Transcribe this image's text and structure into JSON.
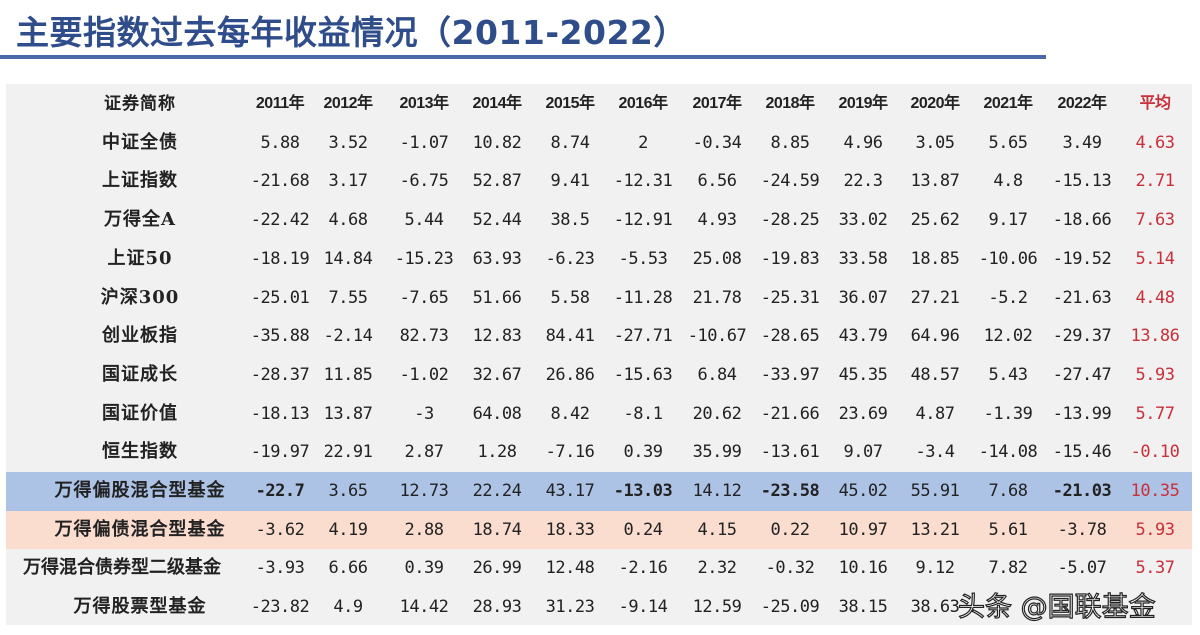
{
  "title": "主要指数过去每年收益情况（2011-2022）",
  "colors": {
    "title": "#2f4d8a",
    "average_text": "#c8303a",
    "highlight_equity_row": "#adc3e6",
    "highlight_bond_row": "#fbddd0",
    "panel": "#f1f1f1"
  },
  "table": {
    "headers": [
      "证券简称",
      "2011年",
      "2012年",
      "2013年",
      "2014年",
      "2015年",
      "2016年",
      "2017年",
      "2018年",
      "2019年",
      "2020年",
      "2021年",
      "2022年",
      "平均"
    ],
    "rows": [
      {
        "name": "中证全债",
        "values": [
          "5.88",
          "3.52",
          "-1.07",
          "10.82",
          "8.74",
          "2",
          "-0.34",
          "8.85",
          "4.96",
          "3.05",
          "5.65",
          "3.49"
        ],
        "avg": "4.63"
      },
      {
        "name": "上证指数",
        "values": [
          "-21.68",
          "3.17",
          "-6.75",
          "52.87",
          "9.41",
          "-12.31",
          "6.56",
          "-24.59",
          "22.3",
          "13.87",
          "4.8",
          "-15.13"
        ],
        "avg": "2.71"
      },
      {
        "name": "万得全A",
        "values": [
          "-22.42",
          "4.68",
          "5.44",
          "52.44",
          "38.5",
          "-12.91",
          "4.93",
          "-28.25",
          "33.02",
          "25.62",
          "9.17",
          "-18.66"
        ],
        "avg": "7.63"
      },
      {
        "name": "上证50",
        "values": [
          "-18.19",
          "14.84",
          "-15.23",
          "63.93",
          "-6.23",
          "-5.53",
          "25.08",
          "-19.83",
          "33.58",
          "18.85",
          "-10.06",
          "-19.52"
        ],
        "avg": "5.14"
      },
      {
        "name": "沪深300",
        "values": [
          "-25.01",
          "7.55",
          "-7.65",
          "51.66",
          "5.58",
          "-11.28",
          "21.78",
          "-25.31",
          "36.07",
          "27.21",
          "-5.2",
          "-21.63"
        ],
        "avg": "4.48"
      },
      {
        "name": "创业板指",
        "values": [
          "-35.88",
          "-2.14",
          "82.73",
          "12.83",
          "84.41",
          "-27.71",
          "-10.67",
          "-28.65",
          "43.79",
          "64.96",
          "12.02",
          "-29.37"
        ],
        "avg": "13.86"
      },
      {
        "name": "国证成长",
        "values": [
          "-28.37",
          "11.85",
          "-1.02",
          "32.67",
          "26.86",
          "-15.63",
          "6.84",
          "-33.97",
          "45.35",
          "48.57",
          "5.43",
          "-27.47"
        ],
        "avg": "5.93"
      },
      {
        "name": "国证价值",
        "values": [
          "-18.13",
          "13.87",
          "-3",
          "64.08",
          "8.42",
          "-8.1",
          "20.62",
          "-21.66",
          "23.69",
          "4.87",
          "-1.39",
          "-13.99"
        ],
        "avg": "5.77"
      },
      {
        "name": "恒生指数",
        "values": [
          "-19.97",
          "22.91",
          "2.87",
          "1.28",
          "-7.16",
          "0.39",
          "35.99",
          "-13.61",
          "9.07",
          "-3.4",
          "-14.08",
          "-15.46"
        ],
        "avg": "-0.10"
      },
      {
        "name": "万得偏股混合型基金",
        "highlight": "equity",
        "bold_values": [
          0,
          5,
          7,
          11
        ],
        "values": [
          "-22.7",
          "3.65",
          "12.73",
          "22.24",
          "43.17",
          "-13.03",
          "14.12",
          "-23.58",
          "45.02",
          "55.91",
          "7.68",
          "-21.03"
        ],
        "avg": "10.35"
      },
      {
        "name": "万得偏债混合型基金",
        "highlight": "bond",
        "values": [
          "-3.62",
          "4.19",
          "2.88",
          "18.74",
          "18.33",
          "0.24",
          "4.15",
          "0.22",
          "10.97",
          "13.21",
          "5.61",
          "-3.78"
        ],
        "avg": "5.93"
      },
      {
        "name": "万得混合债券型二级基金",
        "values": [
          "-3.93",
          "6.66",
          "0.39",
          "26.99",
          "12.48",
          "-2.16",
          "2.32",
          "-0.32",
          "10.16",
          "9.12",
          "7.82",
          "-5.07"
        ],
        "avg": "5.37"
      },
      {
        "name": "万得股票型基金",
        "values": [
          "-23.82",
          "4.9",
          "14.42",
          "28.93",
          "31.23",
          "-9.14",
          "12.59",
          "-25.09",
          "38.15",
          "38.63",
          "",
          ""
        ],
        "avg": ""
      }
    ]
  },
  "watermark": "头条 @国联基金"
}
